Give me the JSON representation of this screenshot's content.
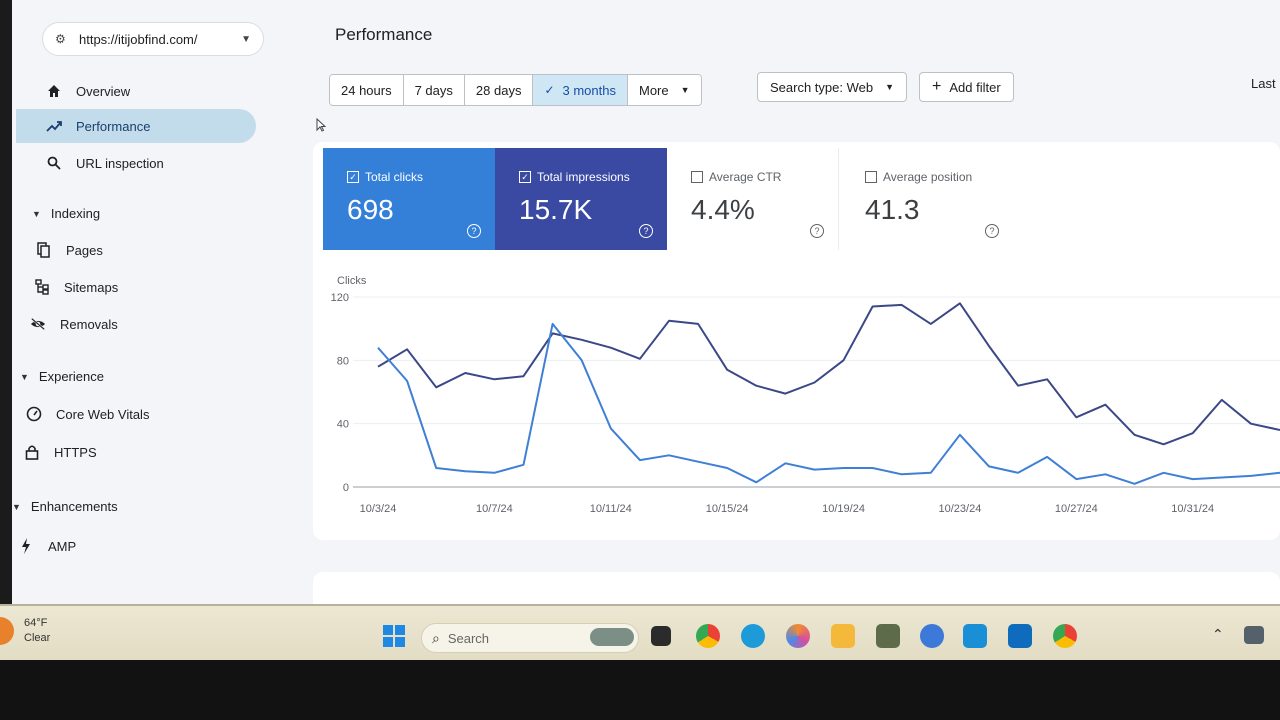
{
  "property": {
    "url": "https://itijobfind.com/"
  },
  "sidebar": {
    "top_items": [
      {
        "label": "Overview"
      },
      {
        "label": "Performance"
      },
      {
        "label": "URL inspection"
      }
    ],
    "indexing": {
      "label": "Indexing",
      "items": [
        {
          "label": "Pages"
        },
        {
          "label": "Sitemaps"
        },
        {
          "label": "Removals"
        }
      ]
    },
    "experience": {
      "label": "Experience",
      "items": [
        {
          "label": "Core Web Vitals"
        },
        {
          "label": "HTTPS"
        }
      ]
    },
    "enhancements": {
      "label": "Enhancements",
      "items": [
        {
          "label": "AMP"
        }
      ]
    }
  },
  "header": {
    "title": "Performance"
  },
  "date_range": {
    "options": [
      "24 hours",
      "7 days",
      "28 days",
      "3 months",
      "More"
    ],
    "selected": "3 months"
  },
  "filters": {
    "search_type": "Search type: Web",
    "add_filter": "Add filter",
    "last": "Last"
  },
  "metrics": {
    "clicks": {
      "label": "Total clicks",
      "value": "698",
      "checked": true,
      "color": "#3480d9"
    },
    "impressions": {
      "label": "Total impressions",
      "value": "15.7K",
      "checked": true,
      "color": "#3a4aa3"
    },
    "ctr": {
      "label": "Average CTR",
      "value": "4.4%",
      "checked": false
    },
    "position": {
      "label": "Average position",
      "value": "41.3",
      "checked": false
    }
  },
  "chart_data": {
    "type": "line",
    "ylabel": "Clicks",
    "ylim": [
      0,
      120
    ],
    "yticks": [
      0,
      40,
      80,
      120
    ],
    "xtick_labels": [
      "10/3/24",
      "10/7/24",
      "10/11/24",
      "10/15/24",
      "10/19/24",
      "10/23/24",
      "10/27/24",
      "10/31/24"
    ],
    "x_start": "2024-10-03",
    "x_end": "2024-11-03",
    "grid": true,
    "series": [
      {
        "color": "#3f7fd6",
        "x": [
          "10/3/24",
          "10/4/24",
          "10/5/24",
          "10/6/24",
          "10/7/24",
          "10/8/24",
          "10/9/24",
          "10/10/24",
          "10/11/24",
          "10/12/24",
          "10/13/24",
          "10/14/24",
          "10/15/24",
          "10/16/24",
          "10/17/24",
          "10/18/24",
          "10/19/24",
          "10/20/24",
          "10/21/24",
          "10/22/24",
          "10/23/24",
          "10/24/24",
          "10/25/24",
          "10/26/24",
          "10/27/24",
          "10/28/24",
          "10/29/24",
          "10/30/24",
          "10/31/24",
          "11/1/24",
          "11/2/24",
          "11/3/24"
        ],
        "values": [
          88,
          67,
          12,
          10,
          9,
          14,
          103,
          80,
          37,
          17,
          20,
          16,
          12,
          3,
          15,
          11,
          12,
          12,
          8,
          9,
          33,
          13,
          9,
          19,
          5,
          8,
          2,
          9,
          5,
          6,
          7,
          9
        ]
      },
      {
        "color": "#3b4888",
        "x": [
          "10/3/24",
          "10/4/24",
          "10/5/24",
          "10/6/24",
          "10/7/24",
          "10/8/24",
          "10/9/24",
          "10/10/24",
          "10/11/24",
          "10/12/24",
          "10/13/24",
          "10/14/24",
          "10/15/24",
          "10/16/24",
          "10/17/24",
          "10/18/24",
          "10/19/24",
          "10/20/24",
          "10/21/24",
          "10/22/24",
          "10/23/24",
          "10/24/24",
          "10/25/24",
          "10/26/24",
          "10/27/24",
          "10/28/24",
          "10/29/24",
          "10/30/24",
          "10/31/24",
          "11/1/24",
          "11/2/24",
          "11/3/24"
        ],
        "values": [
          76,
          87,
          63,
          72,
          68,
          70,
          97,
          93,
          88,
          81,
          105,
          103,
          74,
          64,
          59,
          66,
          80,
          114,
          115,
          103,
          116,
          89,
          64,
          68,
          44,
          52,
          33,
          27,
          34,
          55,
          40,
          36
        ]
      }
    ]
  },
  "taskbar": {
    "weather_temp": "64°F",
    "weather_cond": "Clear",
    "search_placeholder": "Search"
  }
}
